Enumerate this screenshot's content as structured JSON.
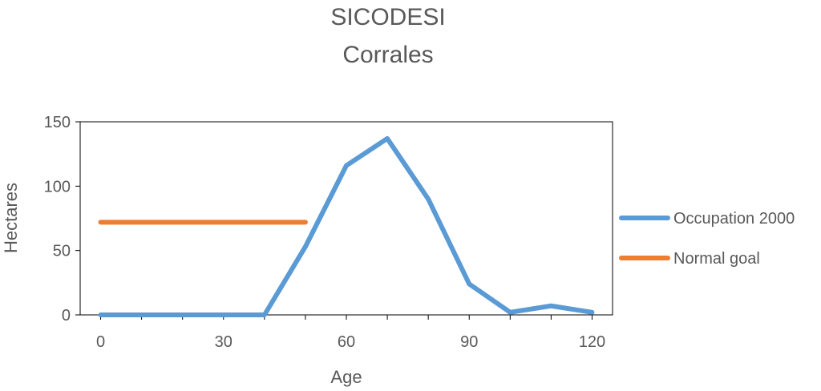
{
  "chart_data": {
    "type": "line",
    "title": "SICODESI",
    "subtitle": "Corrales",
    "xlabel": "Age",
    "ylabel": "Hectares",
    "xlim": [
      -5,
      125
    ],
    "ylim": [
      0,
      150
    ],
    "xticks": [
      0,
      30,
      60,
      90,
      120
    ],
    "yticks": [
      0,
      50,
      100,
      150
    ],
    "grid": false,
    "legend": "right",
    "series": [
      {
        "name": "Occupation 2000",
        "color": "#5B9BD5",
        "x": [
          0,
          10,
          20,
          30,
          40,
          50,
          60,
          70,
          80,
          90,
          100,
          110,
          120
        ],
        "y": [
          0,
          0,
          0,
          0,
          0,
          53,
          116,
          137,
          90,
          24,
          2,
          7,
          2
        ]
      },
      {
        "name": "Normal goal",
        "color": "#ED7D31",
        "x": [
          0,
          50
        ],
        "y": [
          72,
          72
        ]
      }
    ]
  }
}
